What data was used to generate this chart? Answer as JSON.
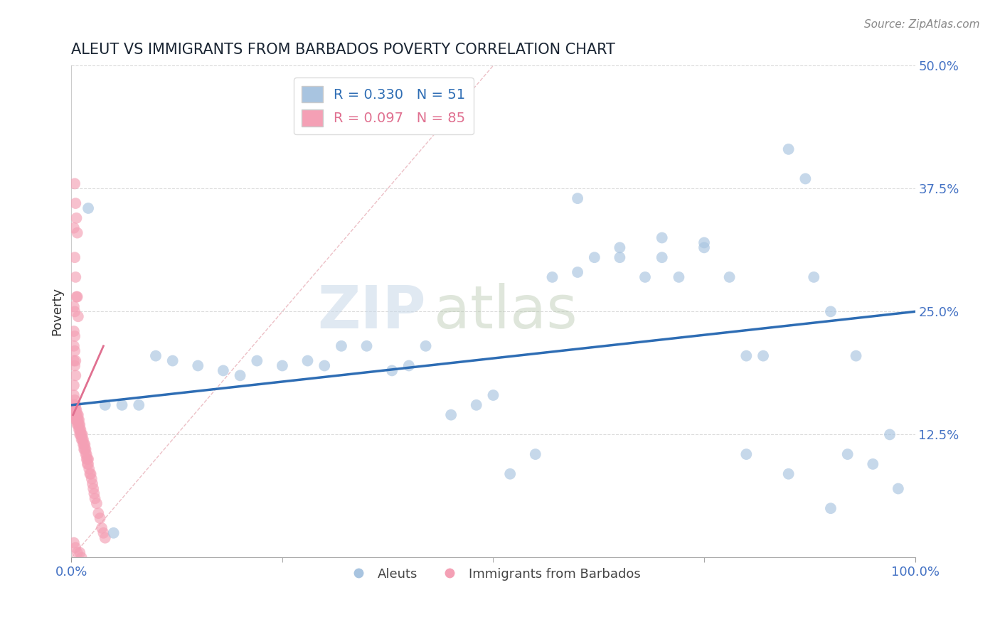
{
  "title": "ALEUT VS IMMIGRANTS FROM BARBADOS POVERTY CORRELATION CHART",
  "source": "Source: ZipAtlas.com",
  "ylabel": "Poverty",
  "xlim": [
    0,
    1.0
  ],
  "ylim": [
    0,
    0.5
  ],
  "yticks": [
    0.0,
    0.125,
    0.25,
    0.375,
    0.5
  ],
  "ytick_labels": [
    "",
    "12.5%",
    "25.0%",
    "37.5%",
    "50.0%"
  ],
  "legend_r1": "R = 0.330",
  "legend_n1": "N = 51",
  "legend_r2": "R = 0.097",
  "legend_n2": "N = 85",
  "blue_color": "#a8c4e0",
  "pink_color": "#f4a0b5",
  "blue_line_color": "#2e6db4",
  "pink_line_color": "#e07090",
  "grid_color": "#cccccc",
  "title_color": "#1a2533",
  "axis_label_color": "#4472c4",
  "aleut_x": [
    0.02,
    0.04,
    0.06,
    0.08,
    0.1,
    0.12,
    0.15,
    0.18,
    0.2,
    0.22,
    0.25,
    0.28,
    0.3,
    0.32,
    0.35,
    0.38,
    0.4,
    0.42,
    0.45,
    0.48,
    0.5,
    0.52,
    0.55,
    0.57,
    0.6,
    0.62,
    0.65,
    0.68,
    0.7,
    0.72,
    0.75,
    0.78,
    0.8,
    0.82,
    0.85,
    0.87,
    0.88,
    0.9,
    0.92,
    0.93,
    0.95,
    0.97,
    0.98,
    0.6,
    0.65,
    0.7,
    0.75,
    0.8,
    0.85,
    0.9,
    0.05
  ],
  "aleut_y": [
    0.355,
    0.155,
    0.155,
    0.155,
    0.205,
    0.2,
    0.195,
    0.19,
    0.185,
    0.2,
    0.195,
    0.2,
    0.195,
    0.215,
    0.215,
    0.19,
    0.195,
    0.215,
    0.145,
    0.155,
    0.165,
    0.085,
    0.105,
    0.285,
    0.29,
    0.305,
    0.315,
    0.285,
    0.305,
    0.285,
    0.315,
    0.285,
    0.205,
    0.205,
    0.415,
    0.385,
    0.285,
    0.25,
    0.105,
    0.205,
    0.095,
    0.125,
    0.07,
    0.365,
    0.305,
    0.325,
    0.32,
    0.105,
    0.085,
    0.05,
    0.025
  ],
  "barbados_x": [
    0.002,
    0.003,
    0.003,
    0.003,
    0.004,
    0.004,
    0.004,
    0.005,
    0.005,
    0.005,
    0.005,
    0.006,
    0.006,
    0.006,
    0.007,
    0.007,
    0.007,
    0.008,
    0.008,
    0.008,
    0.009,
    0.009,
    0.009,
    0.01,
    0.01,
    0.01,
    0.011,
    0.011,
    0.012,
    0.012,
    0.013,
    0.013,
    0.014,
    0.014,
    0.015,
    0.015,
    0.016,
    0.016,
    0.017,
    0.017,
    0.018,
    0.018,
    0.019,
    0.019,
    0.02,
    0.02,
    0.021,
    0.022,
    0.023,
    0.024,
    0.025,
    0.026,
    0.027,
    0.028,
    0.03,
    0.032,
    0.034,
    0.036,
    0.038,
    0.04,
    0.003,
    0.004,
    0.005,
    0.006,
    0.007,
    0.008,
    0.004,
    0.005,
    0.006,
    0.007,
    0.003,
    0.004,
    0.005,
    0.003,
    0.004,
    0.005,
    0.003,
    0.004,
    0.003,
    0.004,
    0.003,
    0.005,
    0.007,
    0.01,
    0.012
  ],
  "barbados_y": [
    0.155,
    0.155,
    0.165,
    0.175,
    0.16,
    0.15,
    0.145,
    0.155,
    0.15,
    0.145,
    0.14,
    0.15,
    0.145,
    0.14,
    0.145,
    0.14,
    0.135,
    0.145,
    0.14,
    0.135,
    0.14,
    0.135,
    0.13,
    0.135,
    0.13,
    0.125,
    0.13,
    0.125,
    0.125,
    0.12,
    0.125,
    0.12,
    0.12,
    0.115,
    0.115,
    0.11,
    0.115,
    0.11,
    0.11,
    0.105,
    0.105,
    0.1,
    0.1,
    0.095,
    0.1,
    0.095,
    0.09,
    0.085,
    0.085,
    0.08,
    0.075,
    0.07,
    0.065,
    0.06,
    0.055,
    0.045,
    0.04,
    0.03,
    0.025,
    0.02,
    0.335,
    0.305,
    0.285,
    0.265,
    0.265,
    0.245,
    0.38,
    0.36,
    0.345,
    0.33,
    0.2,
    0.195,
    0.185,
    0.215,
    0.21,
    0.2,
    0.23,
    0.225,
    0.255,
    0.25,
    0.015,
    0.01,
    0.005,
    0.005,
    0.0
  ]
}
